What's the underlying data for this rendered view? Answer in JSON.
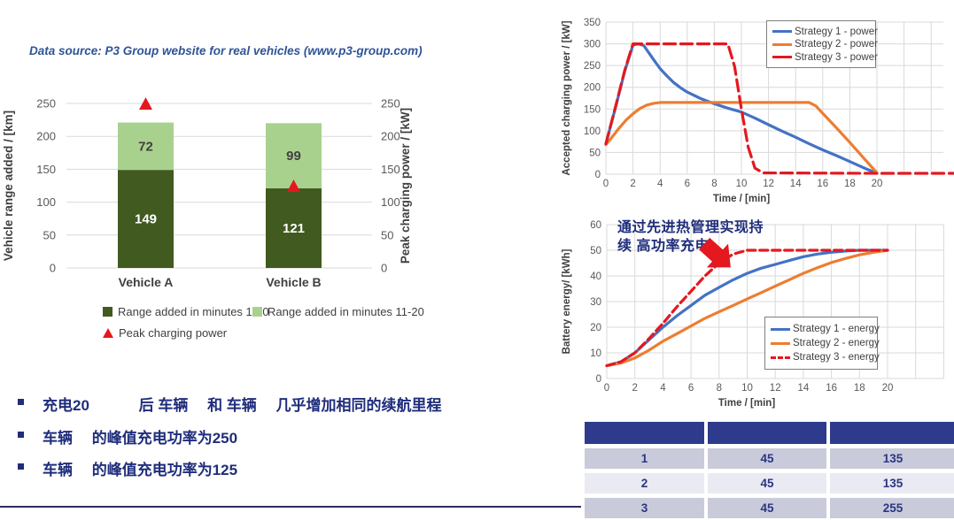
{
  "colors": {
    "dark_green": "#405a1f",
    "light_green": "#a9d18e",
    "blue_line": "#4472c4",
    "orange_line": "#ed7d31",
    "red": "#e4181f",
    "navy_text": "#1f2d7b",
    "table_header": "#2e3a8c",
    "grid": "#d9d9d9",
    "axis_text": "#595959"
  },
  "data_source_note": "Data source: P3 Group website for real vehicles (www.p3-group.com)",
  "annotation": {
    "line1": "通过先进热管理实现持",
    "line2": "续 高功率充电"
  },
  "bullets": [
    "充电20　　　 后 车辆　 和 车辆　 几乎增加相同的续航里程",
    "车辆　 的峰值充电功率为250",
    "车辆　 的峰值充电功率为125"
  ],
  "table": {
    "headers": [
      "",
      "",
      ""
    ],
    "rows": [
      [
        "1",
        "45",
        "135"
      ],
      [
        "2",
        "45",
        "135"
      ],
      [
        "3",
        "45",
        "255"
      ]
    ]
  },
  "chart_data": [
    {
      "type": "bar",
      "stacked": true,
      "categories": [
        "Vehicle A",
        "Vehicle B"
      ],
      "series": [
        {
          "name": "Range added in minutes 1-10",
          "values": [
            149,
            121
          ],
          "color": "#405a1f"
        },
        {
          "name": "Range added in minutes 11-20",
          "values": [
            72,
            99
          ],
          "color": "#a9d18e"
        }
      ],
      "markers": {
        "name": "Peak charging power",
        "values": [
          250,
          125
        ],
        "color": "#e4181f"
      },
      "ylabel_left": "Vehicle range added / [km]",
      "ylabel_right": "Peak charging power / [kW]",
      "ylim": [
        0,
        250
      ],
      "yticks": [
        0,
        50,
        100,
        150,
        200,
        250
      ],
      "grid": true,
      "legend_position": "bottom"
    },
    {
      "type": "line",
      "title": "",
      "xlabel": "Time / [min]",
      "ylabel": "Accepted charging power / [kW]",
      "xlim": [
        0,
        20
      ],
      "ylim": [
        0,
        350
      ],
      "xticks": [
        0,
        2,
        4,
        6,
        8,
        10,
        12,
        14,
        16,
        18,
        20
      ],
      "yticks": [
        0,
        50,
        100,
        150,
        200,
        250,
        300,
        350
      ],
      "grid": true,
      "legend_position": "top-right",
      "series": [
        {
          "name": "Strategy 1 - power",
          "color": "#4472c4",
          "dash": null,
          "points": [
            [
              0,
              70
            ],
            [
              0.7,
              152
            ],
            [
              1.4,
              238
            ],
            [
              2,
              297
            ],
            [
              2.4,
              300
            ],
            [
              2.8,
              296
            ],
            [
              3.2,
              278
            ],
            [
              3.6,
              260
            ],
            [
              4,
              243
            ],
            [
              4.5,
              226
            ],
            [
              5,
              211
            ],
            [
              5.5,
              199
            ],
            [
              6,
              189
            ],
            [
              7,
              174
            ],
            [
              8,
              162
            ],
            [
              9,
              152
            ],
            [
              10,
              143
            ],
            [
              11,
              129
            ],
            [
              12,
              114
            ],
            [
              13,
              99
            ],
            [
              14,
              85
            ],
            [
              15,
              70
            ],
            [
              16,
              56
            ],
            [
              17,
              43
            ],
            [
              18,
              29
            ],
            [
              19,
              15
            ],
            [
              20,
              2
            ]
          ]
        },
        {
          "name": "Strategy 2 - power",
          "color": "#ed7d31",
          "dash": null,
          "points": [
            [
              0,
              68
            ],
            [
              0.5,
              87
            ],
            [
              1,
              107
            ],
            [
              1.5,
              125
            ],
            [
              2,
              139
            ],
            [
              2.5,
              151
            ],
            [
              3,
              159
            ],
            [
              3.5,
              163
            ],
            [
              4,
              165
            ],
            [
              15,
              165
            ],
            [
              15.5,
              157
            ],
            [
              16,
              140
            ],
            [
              17,
              107
            ],
            [
              18,
              73
            ],
            [
              19,
              38
            ],
            [
              20,
              3
            ]
          ]
        },
        {
          "name": "Strategy 3 - power",
          "color": "#e4181f",
          "dash": "13 6",
          "points": [
            [
              0,
              70
            ],
            [
              0.7,
              154
            ],
            [
              1.4,
              240
            ],
            [
              2,
              300
            ],
            [
              9,
              300
            ],
            [
              9.5,
              248
            ],
            [
              10,
              150
            ],
            [
              10.5,
              62
            ],
            [
              11,
              14
            ],
            [
              11.6,
              3
            ],
            [
              20,
              2
            ],
            [
              26,
              2
            ]
          ]
        }
      ]
    },
    {
      "type": "line",
      "title": "",
      "xlabel": "Time / [min]",
      "ylabel": "Battery energy/ [kWh]",
      "xlim": [
        0,
        20
      ],
      "ylim": [
        0,
        60
      ],
      "xticks": [
        0,
        2,
        4,
        6,
        8,
        10,
        12,
        14,
        16,
        18,
        20
      ],
      "yticks": [
        0,
        10,
        20,
        30,
        40,
        50,
        60
      ],
      "grid": true,
      "legend_position": "bottom-right",
      "series": [
        {
          "name": "Strategy 1 - energy",
          "color": "#4472c4",
          "dash": null,
          "points": [
            [
              0,
              5
            ],
            [
              1,
              6.5
            ],
            [
              2,
              10
            ],
            [
              3,
              15
            ],
            [
              4,
              20
            ],
            [
              5,
              24.5
            ],
            [
              6,
              28.5
            ],
            [
              7,
              32.5
            ],
            [
              8,
              35.5
            ],
            [
              9,
              38.5
            ],
            [
              10,
              41
            ],
            [
              11,
              43
            ],
            [
              12,
              44.5
            ],
            [
              13,
              46
            ],
            [
              14,
              47.5
            ],
            [
              15,
              48.5
            ],
            [
              16,
              49.2
            ],
            [
              17,
              49.7
            ],
            [
              18,
              50
            ],
            [
              20,
              50
            ]
          ]
        },
        {
          "name": "Strategy 2 - energy",
          "color": "#ed7d31",
          "dash": null,
          "points": [
            [
              0,
              5
            ],
            [
              1,
              6
            ],
            [
              2,
              8
            ],
            [
              3,
              11
            ],
            [
              4,
              14.5
            ],
            [
              5,
              17.5
            ],
            [
              6,
              20.5
            ],
            [
              7,
              23.5
            ],
            [
              8,
              26
            ],
            [
              9,
              28.5
            ],
            [
              10,
              31
            ],
            [
              11,
              33.5
            ],
            [
              12,
              36
            ],
            [
              13,
              38.5
            ],
            [
              14,
              41
            ],
            [
              15,
              43.2
            ],
            [
              16,
              45.2
            ],
            [
              17,
              46.8
            ],
            [
              18,
              48.2
            ],
            [
              19,
              49.2
            ],
            [
              20,
              50
            ]
          ]
        },
        {
          "name": "Strategy 3 - energy",
          "color": "#e4181f",
          "dash": "9 5",
          "points": [
            [
              0,
              5
            ],
            [
              1,
              6.5
            ],
            [
              2,
              10
            ],
            [
              3,
              15.5
            ],
            [
              4,
              21.5
            ],
            [
              5,
              28
            ],
            [
              6,
              34
            ],
            [
              7,
              40
            ],
            [
              8,
              45
            ],
            [
              9,
              48.5
            ],
            [
              10,
              50
            ],
            [
              20,
              50
            ]
          ]
        }
      ]
    }
  ]
}
